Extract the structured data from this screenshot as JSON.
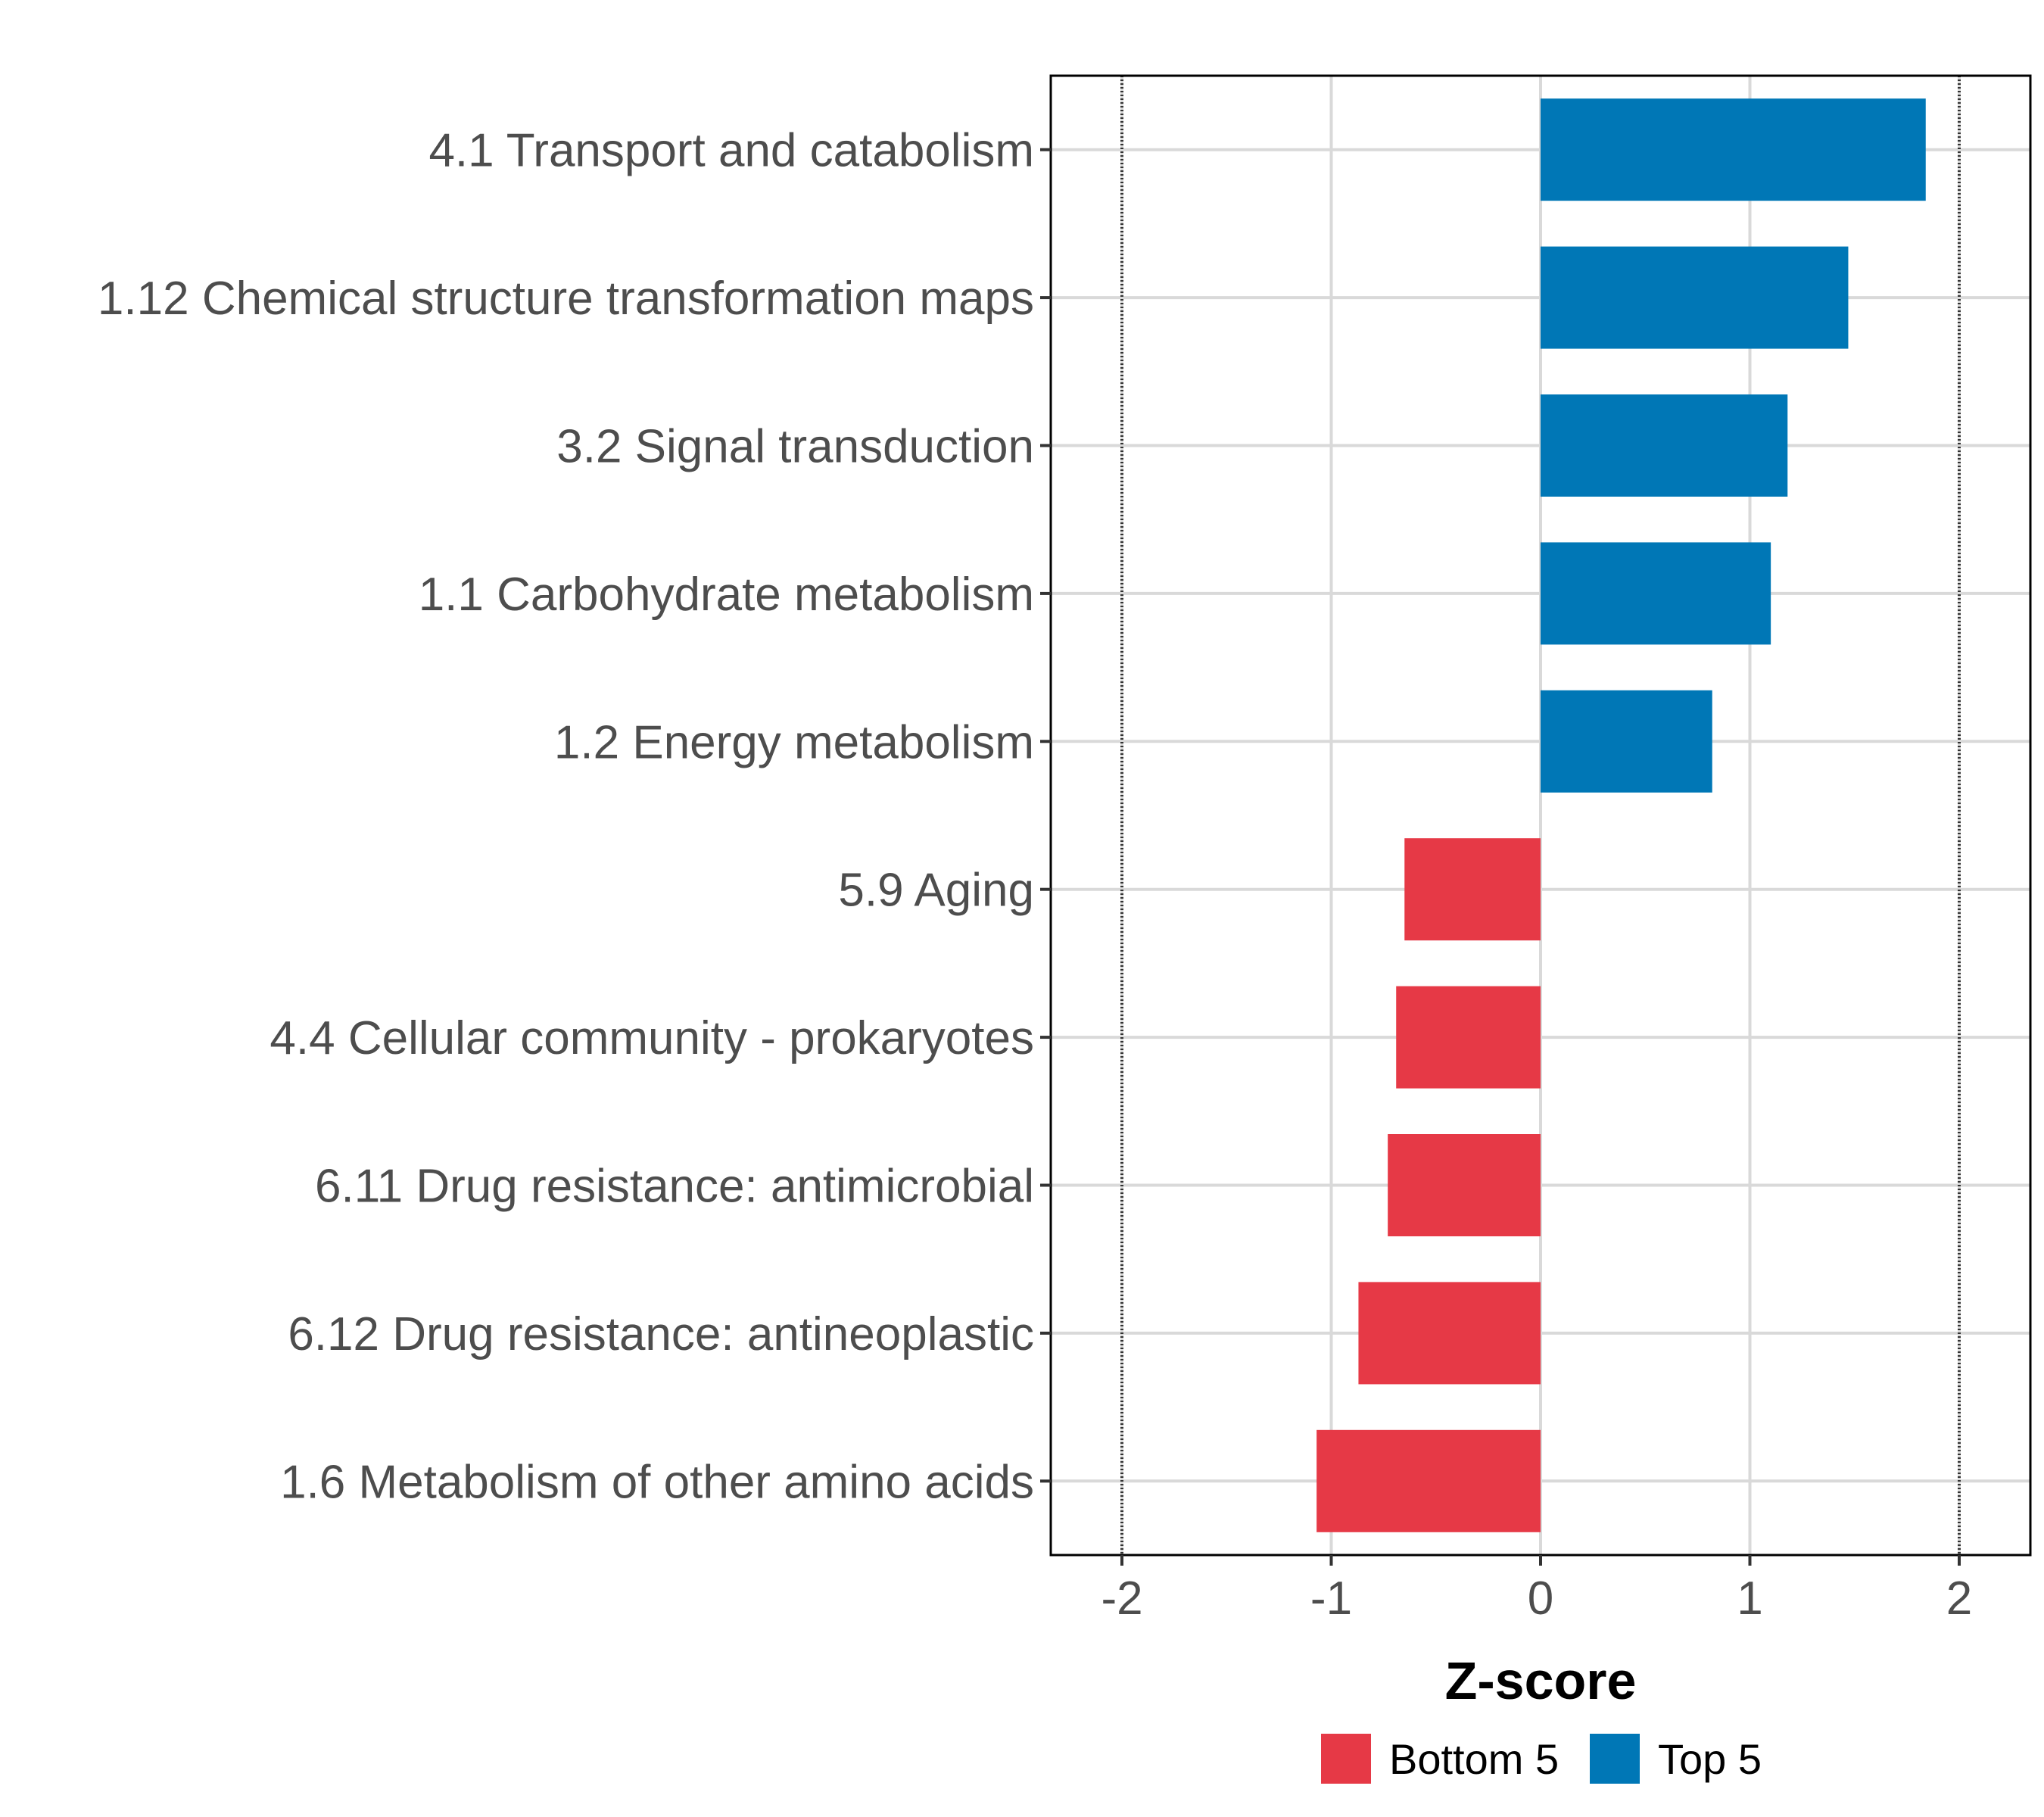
{
  "chart_data": {
    "type": "bar",
    "orientation": "horizontal",
    "categories": [
      "4.1 Transport and catabolism",
      "1.12 Chemical structure transformation maps",
      "3.2 Signal transduction",
      "1.1 Carbohydrate metabolism",
      "1.2 Energy metabolism",
      "5.9 Aging",
      "4.4 Cellular community - prokaryotes",
      "6.11 Drug resistance: antimicrobial",
      "6.12 Drug resistance: antineoplastic",
      "1.6 Metabolism of other amino acids"
    ],
    "values": [
      1.84,
      1.47,
      1.18,
      1.1,
      0.82,
      -0.65,
      -0.69,
      -0.73,
      -0.87,
      -1.07
    ],
    "groups": [
      "Top 5",
      "Top 5",
      "Top 5",
      "Top 5",
      "Top 5",
      "Bottom 5",
      "Bottom 5",
      "Bottom 5",
      "Bottom 5",
      "Bottom 5"
    ],
    "xlabel": "Z-score",
    "ylabel": "",
    "xlim": [
      -2.34,
      2.34
    ],
    "xticks": [
      -2,
      -1,
      0,
      1,
      2
    ],
    "xtick_labels": [
      "-2",
      "-1",
      "0",
      "1",
      "2"
    ],
    "reference_lines": [
      -2,
      2
    ],
    "grid": true,
    "legend": {
      "placement": "bottom",
      "entries": [
        {
          "label": "Bottom 5",
          "color": "#e63946"
        },
        {
          "label": "Top 5",
          "color": "#0077b6"
        }
      ]
    },
    "colors": {
      "Bottom 5": "#e63946",
      "Top 5": "#0077b6"
    }
  }
}
